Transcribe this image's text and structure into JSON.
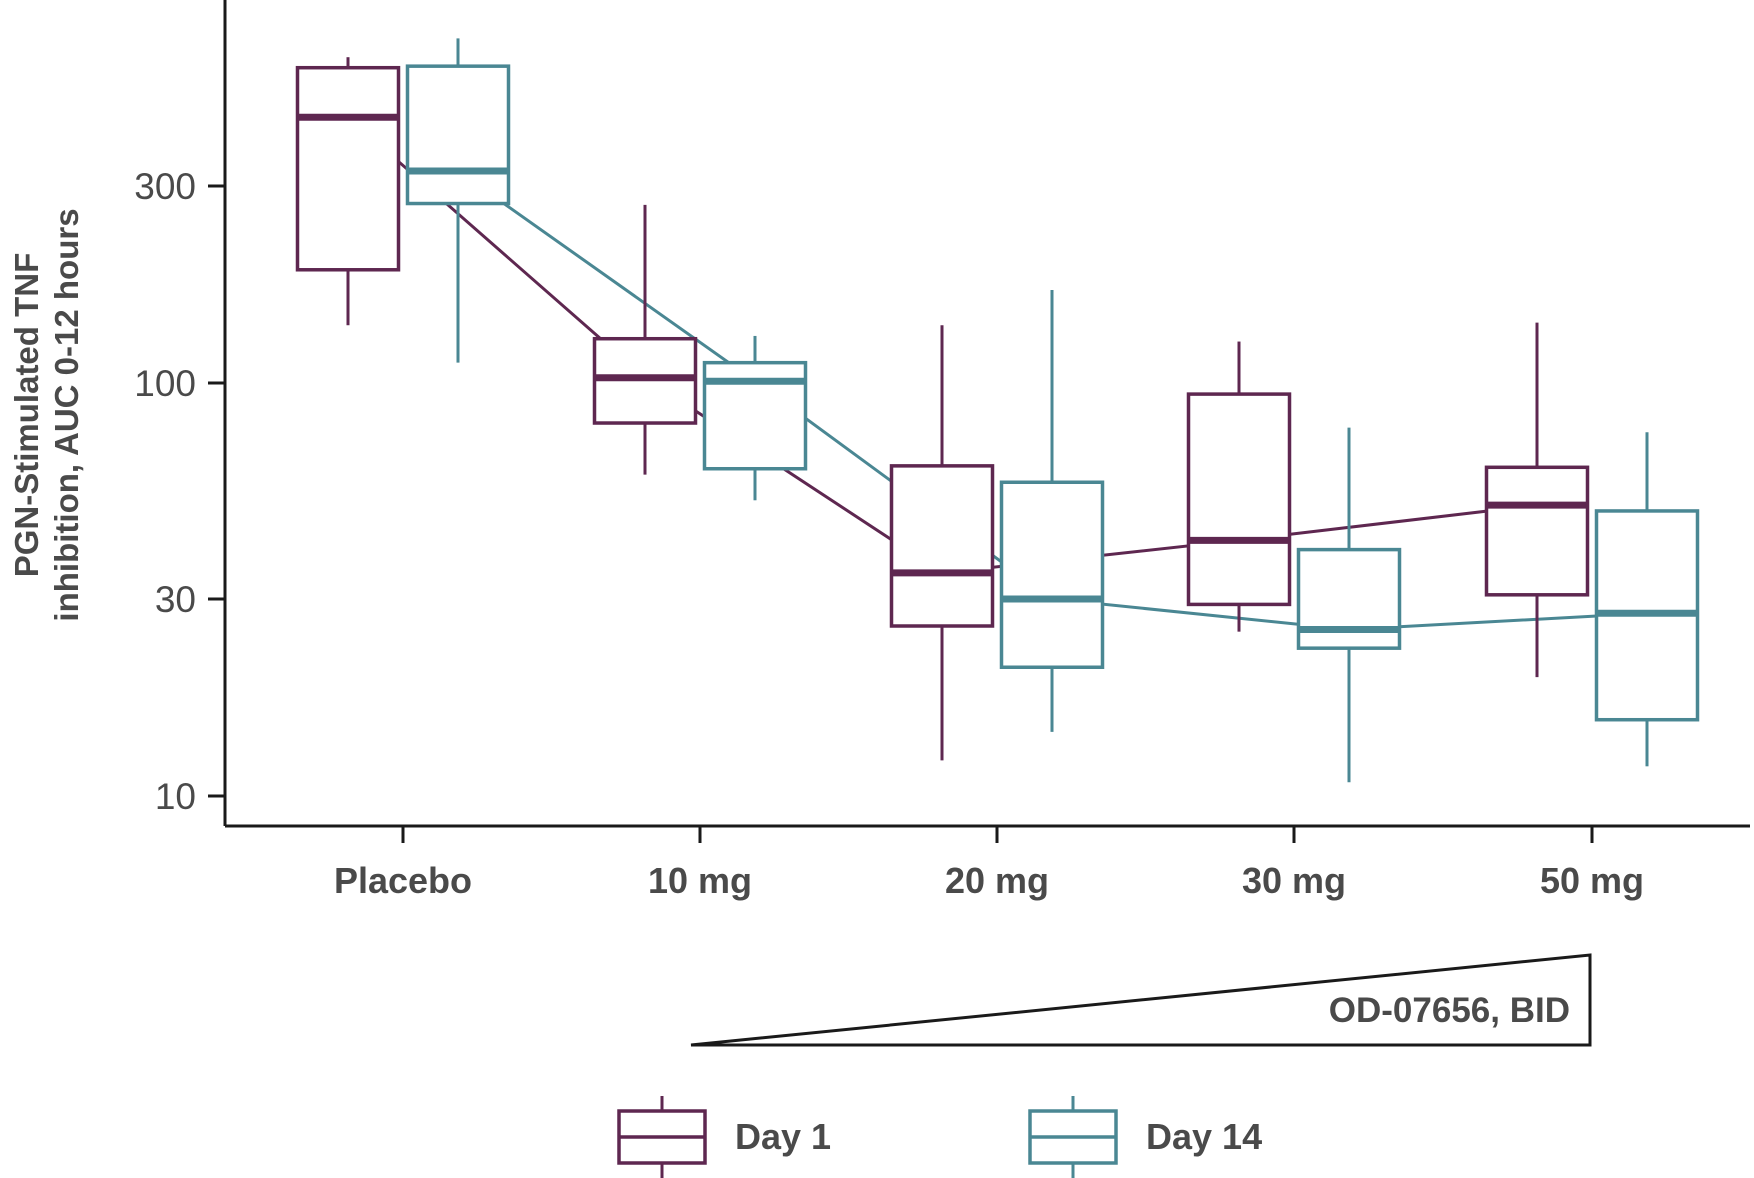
{
  "chart_data": {
    "type": "box",
    "ylabel_lines": [
      "PGN-Stimulated TNF",
      "inhibition, AUC 0-12 hours"
    ],
    "xlabel": "",
    "yscale": "log",
    "ylim": [
      9,
      850
    ],
    "yticks": [
      10,
      30,
      100,
      300
    ],
    "yticklabels": [
      "10",
      "30",
      "100",
      "300"
    ],
    "categories": [
      "Placebo",
      "10 mg",
      "20 mg",
      "30 mg",
      "50 mg"
    ],
    "dose_label": "OD-07656, BID",
    "legend_position": "bottom",
    "series": [
      {
        "name": "Day 1",
        "color": "#5e2750",
        "boxes": [
          {
            "whisker_low": 138,
            "q1": 188,
            "median": 440,
            "q3": 580,
            "whisker_high": 615
          },
          {
            "whisker_low": 60,
            "q1": 80,
            "median": 103,
            "q3": 128,
            "whisker_high": 270
          },
          {
            "whisker_low": 12.2,
            "q1": 25.8,
            "median": 34.7,
            "q3": 63,
            "whisker_high": 138
          },
          {
            "whisker_low": 25,
            "q1": 29.1,
            "median": 41.6,
            "q3": 94,
            "whisker_high": 126
          },
          {
            "whisker_low": 19.4,
            "q1": 30.7,
            "median": 50.6,
            "q3": 62.5,
            "whisker_high": 140
          }
        ]
      },
      {
        "name": "Day 14",
        "color": "#4a8793",
        "boxes": [
          {
            "whisker_low": 112,
            "q1": 272,
            "median": 326,
            "q3": 585,
            "whisker_high": 683
          },
          {
            "whisker_low": 52,
            "q1": 62,
            "median": 101,
            "q3": 112,
            "whisker_high": 130
          },
          {
            "whisker_low": 14.3,
            "q1": 20.5,
            "median": 30,
            "q3": 57.5,
            "whisker_high": 168
          },
          {
            "whisker_low": 10.8,
            "q1": 22.8,
            "median": 25.3,
            "q3": 39.5,
            "whisker_high": 78
          },
          {
            "whisker_low": 11.8,
            "q1": 15.3,
            "median": 27.7,
            "q3": 49,
            "whisker_high": 76
          }
        ]
      }
    ]
  }
}
